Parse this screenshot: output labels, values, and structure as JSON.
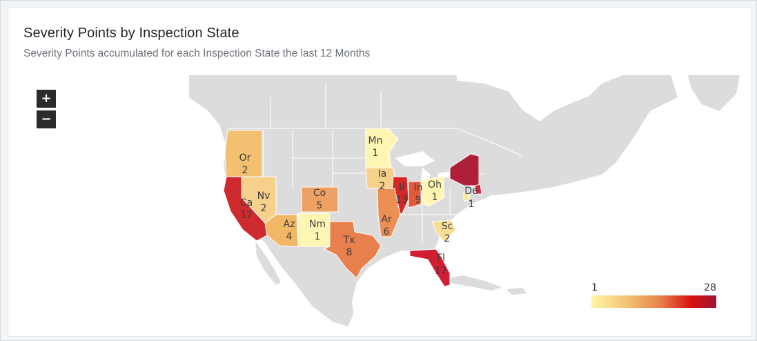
{
  "title": "Severity Points by Inspection State",
  "subtitle": "Severity Points accumulated for each Inspection State the last 12 Months",
  "zoom": {
    "in_label": "+",
    "out_label": "−"
  },
  "legend": {
    "min": "1",
    "max": "28"
  },
  "colors": {
    "land": "#dcdcdc",
    "state_border": "#ffffff",
    "scale": [
      "#fff5a6",
      "#f2c070",
      "#e8824a",
      "#d81010",
      "#9e1436"
    ]
  },
  "chart_data": {
    "type": "choropleth",
    "value_range": [
      1,
      28
    ],
    "regions": [
      {
        "abbr": "Or",
        "value": 2
      },
      {
        "abbr": "Ca",
        "value": 17
      },
      {
        "abbr": "Nv",
        "value": 2
      },
      {
        "abbr": "Az",
        "value": 4
      },
      {
        "abbr": "Co",
        "value": 5
      },
      {
        "abbr": "Nm",
        "value": 1
      },
      {
        "abbr": "Tx",
        "value": 8
      },
      {
        "abbr": "Mn",
        "value": 1
      },
      {
        "abbr": "Ia",
        "value": 2
      },
      {
        "abbr": "Il",
        "value": 13
      },
      {
        "abbr": "In",
        "value": 9
      },
      {
        "abbr": "Oh",
        "value": 1
      },
      {
        "abbr": "Ar",
        "value": 6
      },
      {
        "abbr": "De",
        "value": 1
      },
      {
        "abbr": "Sc",
        "value": 2
      },
      {
        "abbr": "Fl",
        "value": 17
      }
    ]
  }
}
